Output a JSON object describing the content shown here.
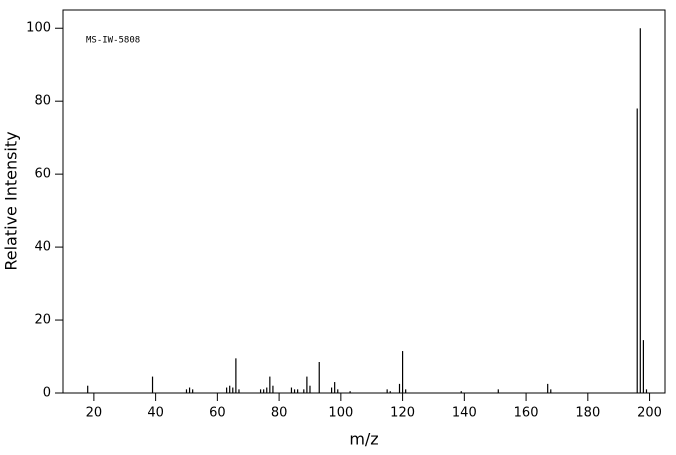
{
  "chart_data": {
    "type": "stick",
    "annotation": "MS-IW-5808",
    "x_label": "m/z",
    "y_label": "Relative Intensity",
    "xlim": [
      10,
      205
    ],
    "ylim": [
      0,
      105
    ],
    "xticks": [
      20,
      40,
      60,
      80,
      100,
      120,
      140,
      160,
      180,
      200
    ],
    "yticks": [
      0,
      20,
      40,
      60,
      80,
      100
    ],
    "color": "#000000",
    "x": [
      18,
      39,
      50,
      51,
      52,
      63,
      64,
      65,
      66,
      67,
      74,
      75,
      76,
      77,
      78,
      84,
      85,
      86,
      88,
      89,
      90,
      93,
      97,
      98,
      99,
      103,
      115,
      116,
      119,
      120,
      121,
      139,
      151,
      167,
      168,
      196,
      197,
      198,
      199
    ],
    "values": [
      2,
      4.5,
      1,
      1.5,
      1,
      1.5,
      2,
      1.5,
      9.5,
      1,
      1,
      1,
      1.5,
      4.5,
      2,
      1.5,
      1,
      1,
      1,
      4.5,
      2,
      8.5,
      1.5,
      3,
      1,
      0.5,
      1,
      0.5,
      2.5,
      11.5,
      1,
      0.5,
      1,
      2.5,
      1,
      78,
      100,
      14.5,
      1
    ]
  }
}
